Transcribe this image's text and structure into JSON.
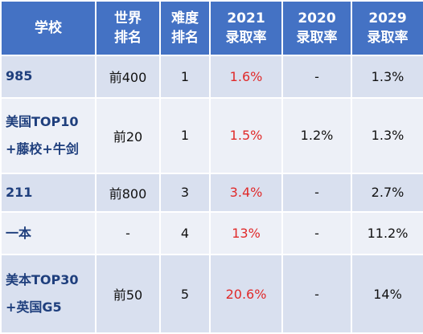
{
  "colors": {
    "header_bg": "#4472c4",
    "row_odd": "#d9e0ef",
    "row_even": "#edf0f7",
    "school_text": "#1f3f7d",
    "highlight_red": "#e02a2a"
  },
  "header": {
    "school": "学校",
    "world_rank": [
      "世界",
      "排名"
    ],
    "difficulty_rank": [
      "难度",
      "排名"
    ],
    "rate_2021": [
      "2021",
      "录取率"
    ],
    "rate_2020": [
      "2020",
      "录取率"
    ],
    "rate_2029": [
      "2029",
      "录取率"
    ]
  },
  "rows": [
    {
      "school": [
        "985"
      ],
      "world_rank": "前400",
      "difficulty_rank": "1",
      "rate_2021": "1.6%",
      "rate_2020": "-",
      "rate_2029": "1.3%"
    },
    {
      "school": [
        "美国TOP10",
        "+藤校+牛剑"
      ],
      "world_rank": "前20",
      "difficulty_rank": "1",
      "rate_2021": "1.5%",
      "rate_2020": "1.2%",
      "rate_2029": "1.3%"
    },
    {
      "school": [
        "211"
      ],
      "world_rank": "前800",
      "difficulty_rank": "3",
      "rate_2021": "3.4%",
      "rate_2020": "-",
      "rate_2029": "2.7%"
    },
    {
      "school": [
        "一本"
      ],
      "world_rank": "-",
      "difficulty_rank": "4",
      "rate_2021": "13%",
      "rate_2020": "-",
      "rate_2029": "11.2%"
    },
    {
      "school": [
        "美本TOP30",
        "+英国G5"
      ],
      "world_rank": "前50",
      "difficulty_rank": "5",
      "rate_2021": "20.6%",
      "rate_2020": "-",
      "rate_2029": "14%"
    }
  ]
}
